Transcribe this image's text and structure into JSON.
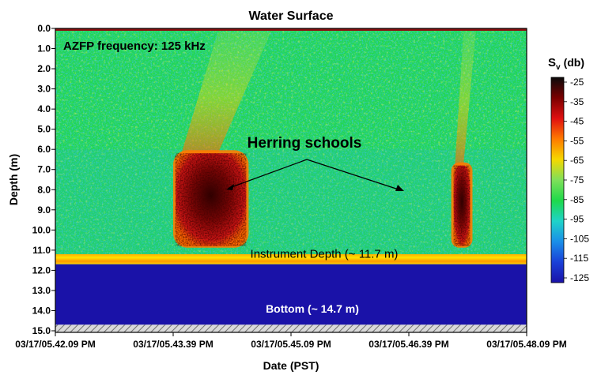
{
  "chart_data": {
    "type": "heatmap",
    "title": "Water Surface",
    "annotation_frequency": "AZFP frequency: 125 kHz",
    "annotation_schools": "Herring schools",
    "annotation_instrument": "Instrument Depth (~ 11.7 m)",
    "annotation_bottom": "Bottom (~ 14.7 m)",
    "xlabel": "Date (PST)",
    "ylabel": "Depth (m)",
    "x_tick_labels": [
      "03/17/05.42.09 PM",
      "03/17/05.43.39 PM",
      "03/17/05.45.09 PM",
      "03/17/05.46.39 PM",
      "03/17/05.48.09 PM"
    ],
    "y_tick_labels": [
      "0.0",
      "1.0",
      "2.0",
      "3.0",
      "4.0",
      "5.0",
      "6.0",
      "7.0",
      "8.0",
      "9.0",
      "10.0",
      "11.0",
      "12.0",
      "13.0",
      "14.0",
      "15.0"
    ],
    "ylim": [
      0,
      15
    ],
    "y_inverted": true,
    "instrument_depth_m": 11.7,
    "bottom_depth_m": 14.7,
    "colorbar": {
      "label_main": "S",
      "label_sub": "v",
      "label_unit": "(db)",
      "tick_labels": [
        "-25",
        "-35",
        "-45",
        "-55",
        "-65",
        "-75",
        "-85",
        "-95",
        "-105",
        "-115",
        "-125"
      ],
      "range": [
        -125,
        -25
      ],
      "colors": [
        "#0a0a0a",
        "#7a0000",
        "#e01010",
        "#ff7a00",
        "#f5d800",
        "#7fe05a",
        "#1ed94a",
        "#1fd3c8",
        "#1a8fe8",
        "#1a40d8",
        "#1a12a8"
      ]
    },
    "schools": [
      {
        "x_start": 0.255,
        "x_end": 0.405,
        "depth_top": 6.2,
        "depth_bottom": 10.8
      },
      {
        "x_start": 0.845,
        "x_end": 0.88,
        "depth_top": 6.8,
        "depth_bottom": 10.8
      }
    ],
    "colors": {
      "water_background": "#22d653",
      "below_instrument": "#1a12a8",
      "surface_line": "#8b1010"
    }
  }
}
